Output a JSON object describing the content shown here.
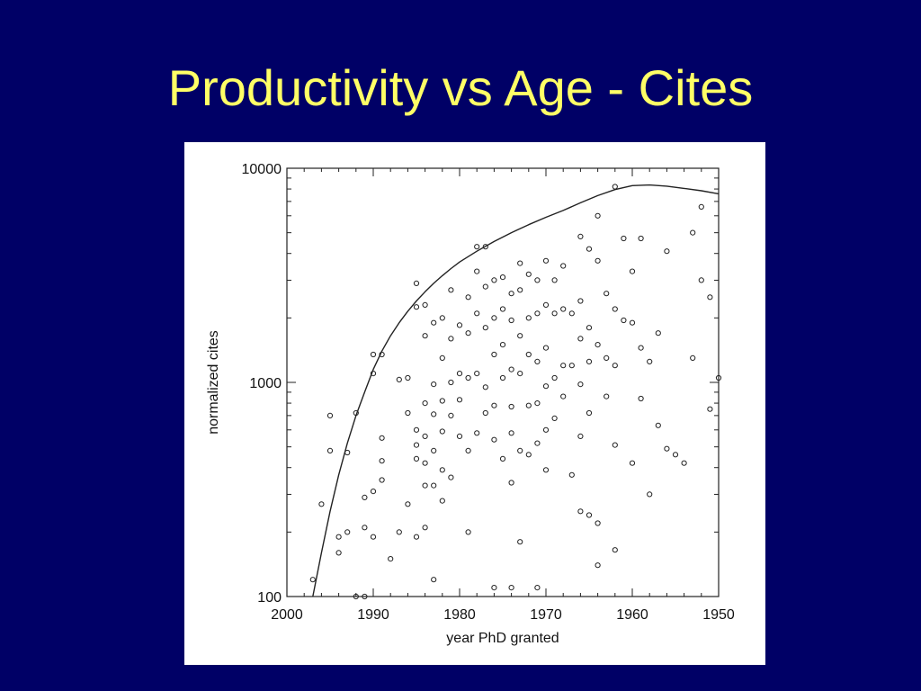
{
  "slide": {
    "title": "Productivity vs Age - Cites",
    "colors": {
      "background": "#000066",
      "title": "#ffff66",
      "panel": "#ffffff"
    }
  },
  "chart_data": {
    "type": "scatter",
    "title": "",
    "xlabel": "year PhD granted",
    "ylabel": "normalized cites",
    "x_reversed": true,
    "xlim": [
      2000,
      1950
    ],
    "ylim": [
      100,
      10000
    ],
    "y_scale": "log",
    "x_ticks": [
      2000,
      1990,
      1980,
      1970,
      1960,
      1950
    ],
    "x_tick_labels": [
      "2000",
      "1990",
      "1980",
      "1970",
      "1960",
      "1950"
    ],
    "y_ticks": [
      100,
      1000,
      10000
    ],
    "y_tick_labels": [
      "100",
      "1000",
      "10000"
    ],
    "grid": false,
    "marker": "open-circle",
    "envelope_curve": {
      "x": [
        1997,
        1996,
        1995,
        1994,
        1993,
        1992,
        1991,
        1990,
        1989,
        1988,
        1987,
        1986,
        1985,
        1984,
        1983,
        1982,
        1981,
        1980,
        1978,
        1976,
        1974,
        1972,
        1970,
        1968,
        1966,
        1964,
        1962,
        1960,
        1958,
        1956,
        1954,
        1952,
        1950
      ],
      "y": [
        100,
        160,
        250,
        370,
        520,
        700,
        900,
        1150,
        1400,
        1650,
        1900,
        2150,
        2400,
        2650,
        2900,
        3150,
        3400,
        3650,
        4100,
        4550,
        5000,
        5450,
        5900,
        6350,
        6900,
        7450,
        7950,
        8300,
        8350,
        8250,
        8050,
        7850,
        7600
      ]
    },
    "points": {
      "x": [
        1996,
        1995,
        1995,
        1994,
        1994,
        1993,
        1993,
        1992,
        1991,
        1991,
        1990,
        1990,
        1990,
        1990,
        1989,
        1989,
        1989,
        1989,
        1988,
        1987,
        1987,
        1986,
        1986,
        1986,
        1985,
        1985,
        1985,
        1985,
        1985,
        1985,
        1984,
        1984,
        1984,
        1984,
        1984,
        1984,
        1984,
        1983,
        1983,
        1983,
        1983,
        1983,
        1983,
        1982,
        1982,
        1982,
        1982,
        1982,
        1982,
        1981,
        1981,
        1981,
        1981,
        1981,
        1980,
        1980,
        1980,
        1980,
        1979,
        1979,
        1979,
        1979,
        1979,
        1978,
        1978,
        1978,
        1978,
        1978,
        1977,
        1977,
        1977,
        1977,
        1977,
        1976,
        1976,
        1976,
        1976,
        1976,
        1975,
        1975,
        1975,
        1975,
        1975,
        1974,
        1974,
        1974,
        1974,
        1974,
        1974,
        1973,
        1973,
        1973,
        1973,
        1973,
        1973,
        1972,
        1972,
        1972,
        1972,
        1972,
        1971,
        1971,
        1971,
        1971,
        1971,
        1971,
        1970,
        1970,
        1970,
        1970,
        1970,
        1970,
        1969,
        1969,
        1969,
        1969,
        1968,
        1968,
        1968,
        1968,
        1967,
        1967,
        1967,
        1966,
        1966,
        1966,
        1966,
        1966,
        1966,
        1965,
        1965,
        1965,
        1965,
        1965,
        1964,
        1964,
        1964,
        1964,
        1963,
        1963,
        1963,
        1962,
        1962,
        1962,
        1962,
        1961,
        1961,
        1960,
        1960,
        1960,
        1959,
        1959,
        1959,
        1958,
        1958,
        1957,
        1957,
        1956,
        1956,
        1955,
        1954,
        1953,
        1953,
        1952,
        1952,
        1951,
        1951,
        1950,
        1997,
        1992,
        1991,
        1976,
        1974,
        1962,
        1964
      ],
      "y": [
        270,
        700,
        480,
        190,
        160,
        200,
        470,
        720,
        290,
        210,
        1350,
        1100,
        310,
        190,
        1350,
        550,
        430,
        350,
        150,
        1030,
        200,
        1050,
        720,
        270,
        2900,
        2250,
        600,
        510,
        440,
        190,
        2300,
        1650,
        800,
        560,
        420,
        330,
        210,
        1900,
        980,
        710,
        480,
        330,
        120,
        2000,
        1300,
        820,
        590,
        390,
        280,
        2700,
        1600,
        1000,
        700,
        360,
        1850,
        1100,
        830,
        560,
        2500,
        1700,
        1050,
        480,
        200,
        4300,
        3300,
        2100,
        1100,
        580,
        4300,
        2800,
        1800,
        950,
        720,
        3000,
        2000,
        1350,
        780,
        540,
        3100,
        2200,
        1500,
        1050,
        440,
        2600,
        1950,
        1150,
        770,
        580,
        340,
        3600,
        2700,
        1650,
        1100,
        480,
        180,
        3200,
        2000,
        1350,
        780,
        460,
        3000,
        2100,
        1250,
        800,
        520,
        110,
        3700,
        2300,
        1450,
        960,
        600,
        390,
        3000,
        2100,
        1050,
        680,
        3500,
        2200,
        1200,
        860,
        2100,
        1200,
        370,
        4800,
        2400,
        1600,
        980,
        560,
        250,
        4200,
        1800,
        1250,
        720,
        240,
        6000,
        3700,
        1500,
        220,
        2600,
        1300,
        860,
        8200,
        2200,
        1200,
        510,
        4700,
        1950,
        3300,
        1900,
        420,
        4700,
        1450,
        840,
        1250,
        300,
        1700,
        630,
        4100,
        490,
        460,
        420,
        5000,
        1300,
        6600,
        3000,
        2500,
        750,
        1050,
        120,
        100,
        100,
        110,
        110,
        165,
        140
      ]
    }
  }
}
